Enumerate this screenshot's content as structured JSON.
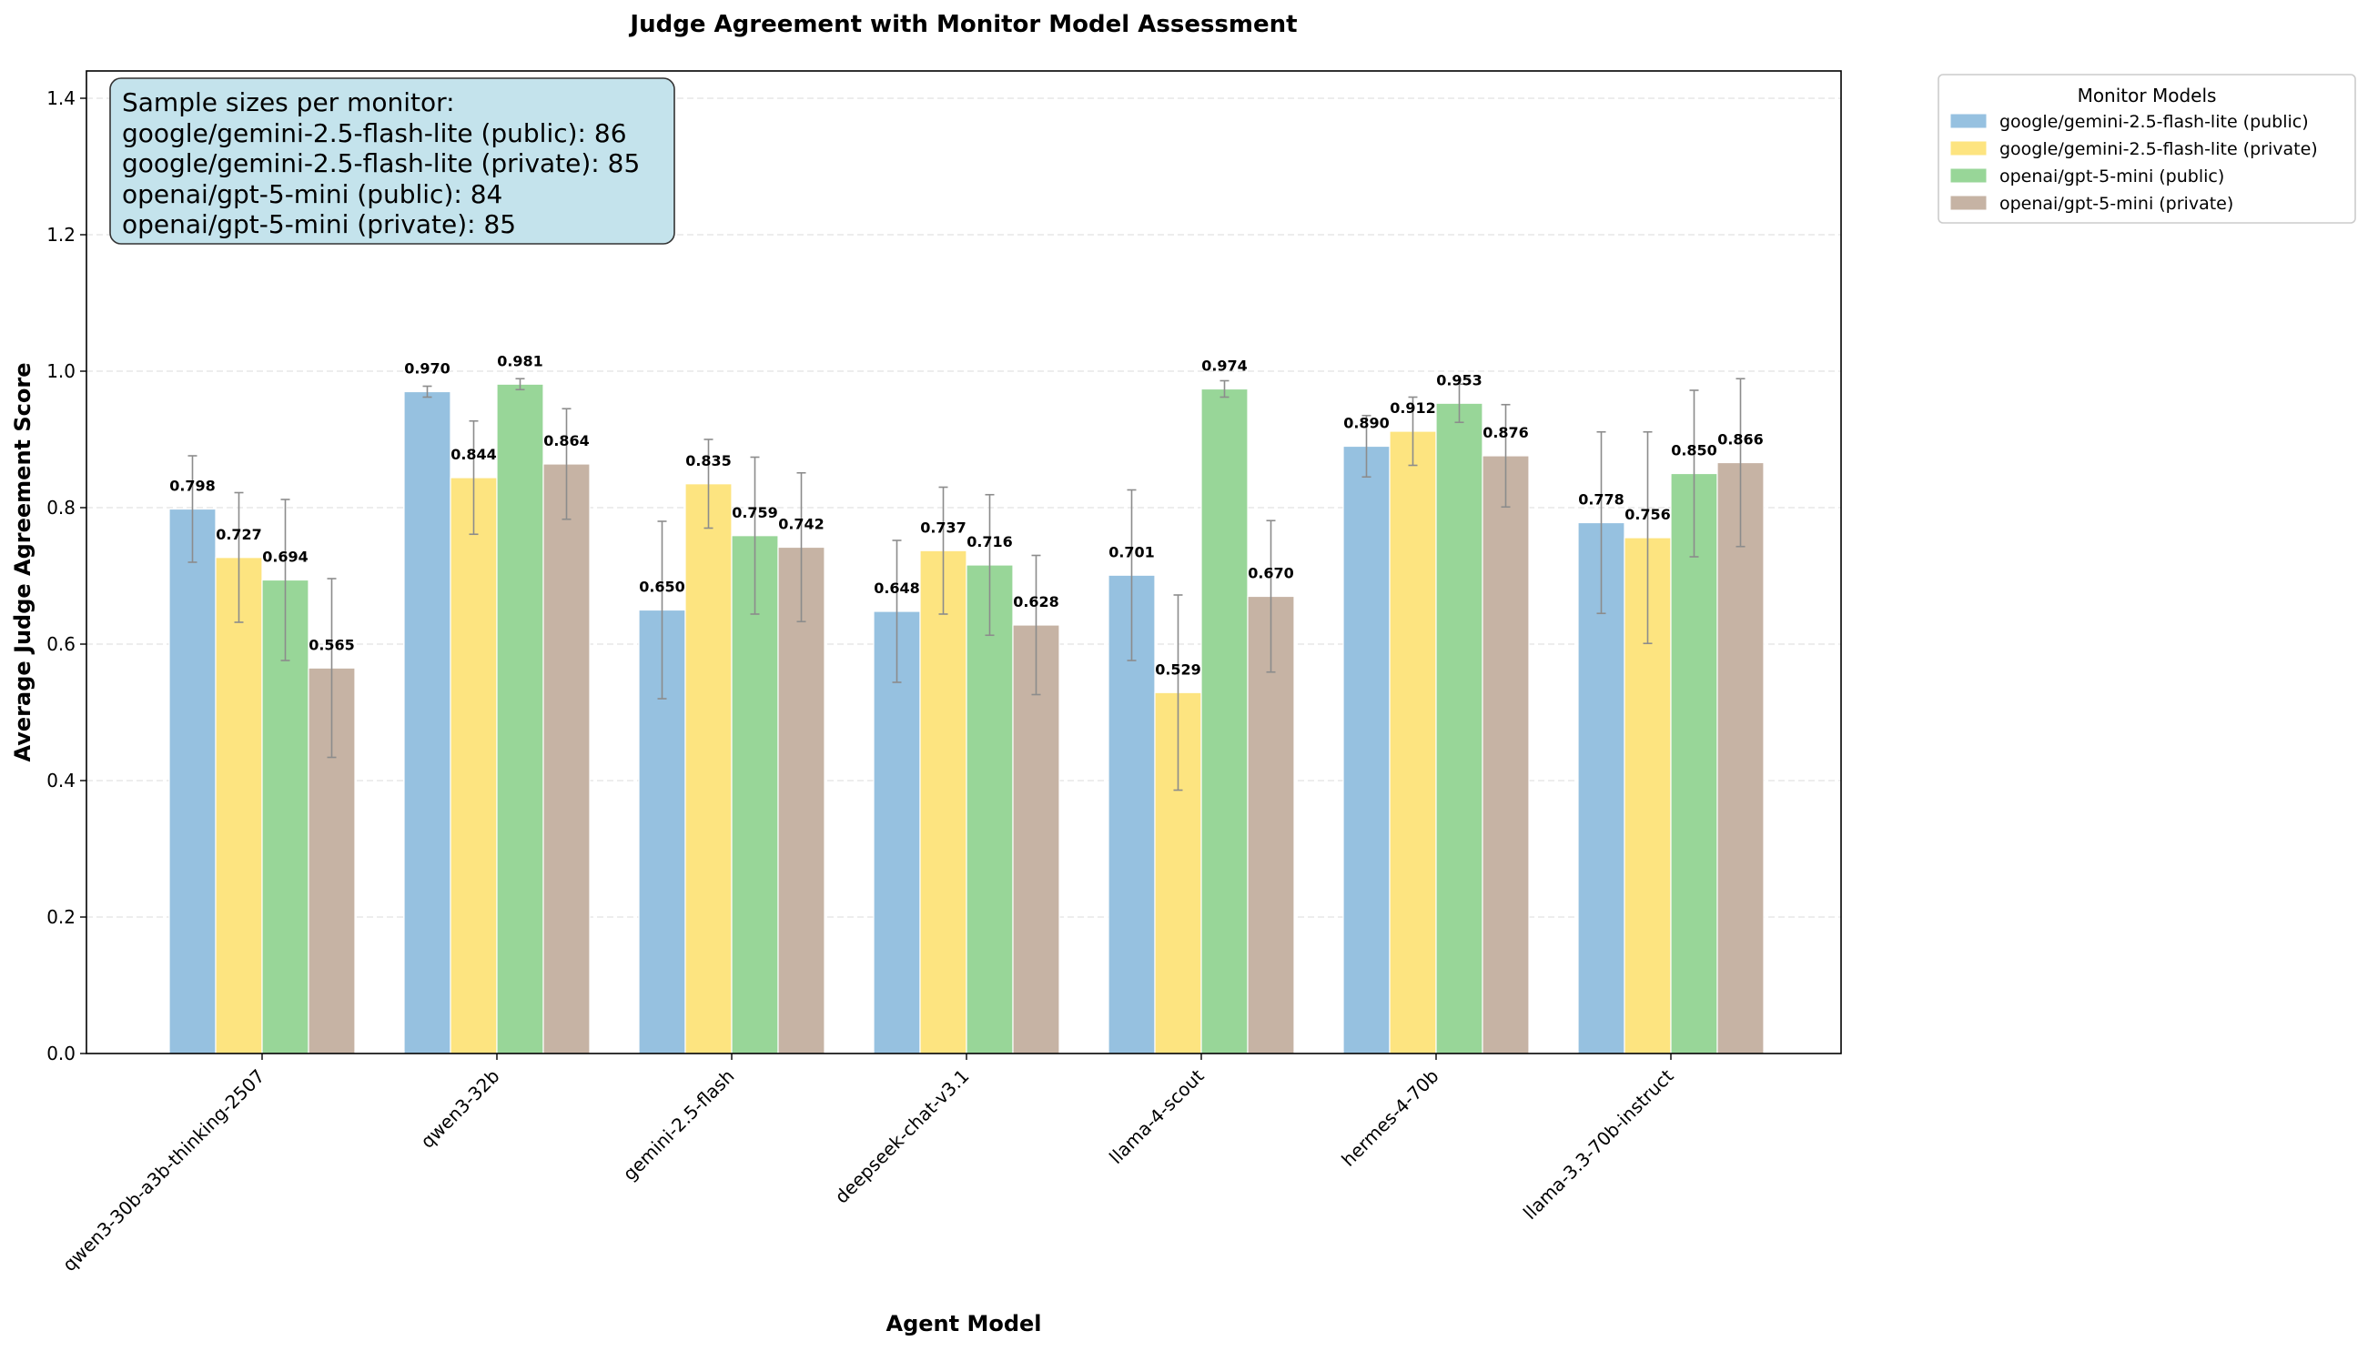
{
  "chart_data": {
    "type": "bar",
    "title": "Judge Agreement with Monitor Model Assessment",
    "xlabel": "Agent Model",
    "ylabel": "Average Judge Agreement Score",
    "ylim": [
      0,
      1.44
    ],
    "yticks": [
      "0.0",
      "0.2",
      "0.4",
      "0.6",
      "0.8",
      "1.0",
      "1.2",
      "1.4"
    ],
    "grid": "horizontal dashed",
    "categories": [
      "qwen3-30b-a3b-thinking-2507",
      "qwen3-32b",
      "gemini-2.5-flash",
      "deepseek-chat-v3.1",
      "llama-4-scout",
      "hermes-4-70b",
      "llama-3.3-70b-instruct"
    ],
    "series": [
      {
        "name": "google/gemini-2.5-flash-lite (public)",
        "color": "#96c1e0",
        "values": [
          0.798,
          0.97,
          0.65,
          0.648,
          0.701,
          0.89,
          0.778
        ],
        "labels": [
          "0.798",
          "0.970",
          "0.650",
          "0.648",
          "0.701",
          "0.890",
          "0.778"
        ],
        "err": [
          0.078,
          0.008,
          0.13,
          0.104,
          0.125,
          0.045,
          0.133
        ]
      },
      {
        "name": "google/gemini-2.5-flash-lite (private)",
        "color": "#fde480",
        "values": [
          0.727,
          0.844,
          0.835,
          0.737,
          0.529,
          0.912,
          0.756
        ],
        "labels": [
          "0.727",
          "0.844",
          "0.835",
          "0.737",
          "0.529",
          "0.912",
          "0.756"
        ],
        "err": [
          0.095,
          0.083,
          0.065,
          0.093,
          0.143,
          0.05,
          0.155
        ]
      },
      {
        "name": "openai/gpt-5-mini (public)",
        "color": "#98d698",
        "values": [
          0.694,
          0.981,
          0.759,
          0.716,
          0.974,
          0.953,
          0.85
        ],
        "labels": [
          "0.694",
          "0.981",
          "0.759",
          "0.716",
          "0.974",
          "0.953",
          "0.850"
        ],
        "err": [
          0.118,
          0.008,
          0.115,
          0.103,
          0.012,
          0.028,
          0.122
        ]
      },
      {
        "name": "openai/gpt-5-mini (private)",
        "color": "#c6b3a4",
        "values": [
          0.565,
          0.864,
          0.742,
          0.628,
          0.67,
          0.876,
          0.866
        ],
        "labels": [
          "0.565",
          "0.864",
          "0.742",
          "0.628",
          "0.670",
          "0.876",
          "0.866"
        ],
        "err": [
          0.131,
          0.081,
          0.109,
          0.102,
          0.111,
          0.075,
          0.123
        ]
      }
    ],
    "legend": {
      "title": "Monitor Models",
      "placement": "outside-top-right"
    },
    "annotation": {
      "lines": [
        "Sample sizes per monitor:",
        "google/gemini-2.5-flash-lite (public): 86",
        "google/gemini-2.5-flash-lite (private): 85",
        "openai/gpt-5-mini (public): 84",
        "openai/gpt-5-mini (private): 85"
      ],
      "background": "#c4e3ec"
    }
  }
}
